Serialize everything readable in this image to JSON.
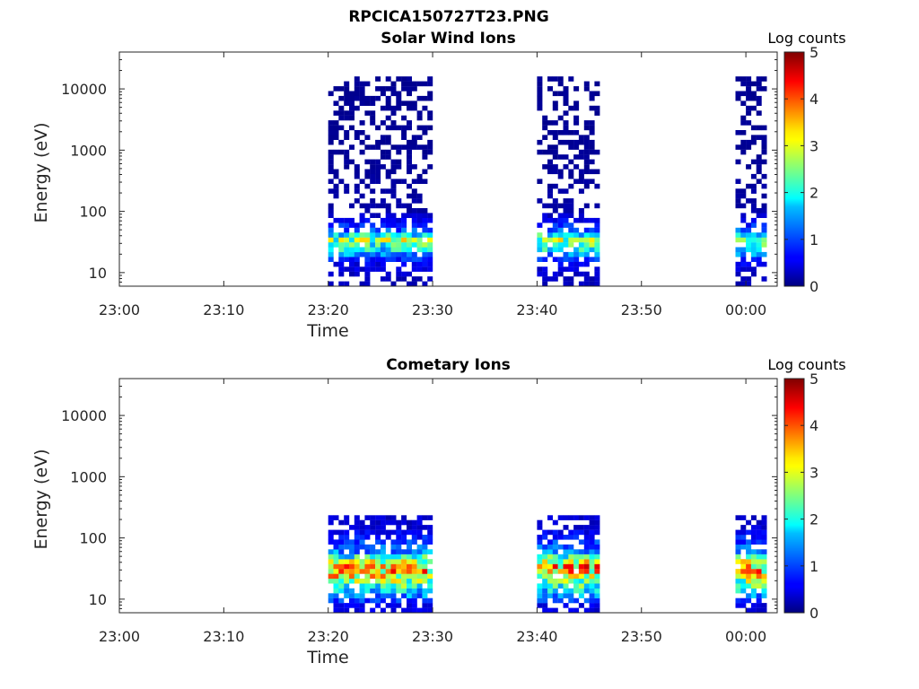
{
  "figure_title": "RPCICA150727T23.PNG",
  "chart_data": [
    {
      "type": "heatmap",
      "title": "Solar Wind Ions",
      "xlabel": "Time",
      "ylabel": "Energy (eV)",
      "xscale": "time",
      "yscale": "log",
      "xlim": [
        "23:00",
        "00:03"
      ],
      "ylim": [
        6,
        40000
      ],
      "xticks": [
        "23:00",
        "23:10",
        "23:20",
        "23:30",
        "23:40",
        "23:50",
        "00:00"
      ],
      "yticks": [
        10,
        100,
        1000,
        10000
      ],
      "ytick_labels": [
        "10",
        "100",
        "1000",
        "10000"
      ],
      "colorbar": {
        "label": "Log counts",
        "range": [
          0,
          5
        ],
        "ticks": [
          "0",
          "1",
          "2",
          "3",
          "4",
          "5"
        ],
        "colormap": "jet"
      },
      "grid": false,
      "intervals": [
        {
          "start": "23:20",
          "end": "23:30"
        },
        {
          "start": "23:40",
          "end": "23:46"
        },
        {
          "start": "23:59",
          "end": "00:02"
        }
      ],
      "intensity_profile": [
        {
          "energy_eV": 8,
          "log_counts": 0.3
        },
        {
          "energy_eV": 15,
          "log_counts": 0.6
        },
        {
          "energy_eV": 25,
          "log_counts": 2.0
        },
        {
          "energy_eV": 35,
          "log_counts": 2.7
        },
        {
          "energy_eV": 50,
          "log_counts": 1.0
        },
        {
          "energy_eV": 100,
          "log_counts": 0.2
        },
        {
          "energy_eV": 1000,
          "log_counts": 0.1
        },
        {
          "energy_eV": 10000,
          "log_counts": 0.1
        }
      ]
    },
    {
      "type": "heatmap",
      "title": "Cometary Ions",
      "xlabel": "Time",
      "ylabel": "Energy (eV)",
      "xscale": "time",
      "yscale": "log",
      "xlim": [
        "23:00",
        "00:03"
      ],
      "ylim": [
        6,
        40000
      ],
      "xticks": [
        "23:00",
        "23:10",
        "23:20",
        "23:30",
        "23:40",
        "23:50",
        "00:00"
      ],
      "yticks": [
        10,
        100,
        1000,
        10000
      ],
      "ytick_labels": [
        "10",
        "100",
        "1000",
        "10000"
      ],
      "colorbar": {
        "label": "Log counts",
        "range": [
          0,
          5
        ],
        "ticks": [
          "0",
          "1",
          "2",
          "3",
          "4",
          "5"
        ],
        "colormap": "jet"
      },
      "grid": false,
      "intervals": [
        {
          "start": "23:20",
          "end": "23:30"
        },
        {
          "start": "23:40",
          "end": "23:46"
        },
        {
          "start": "23:59",
          "end": "00:02"
        }
      ],
      "intensity_profile": [
        {
          "energy_eV": 8,
          "log_counts": 0.5
        },
        {
          "energy_eV": 15,
          "log_counts": 2.0
        },
        {
          "energy_eV": 25,
          "log_counts": 3.4
        },
        {
          "energy_eV": 35,
          "log_counts": 3.6
        },
        {
          "energy_eV": 60,
          "log_counts": 1.3
        },
        {
          "energy_eV": 150,
          "log_counts": 0.4
        }
      ]
    }
  ]
}
